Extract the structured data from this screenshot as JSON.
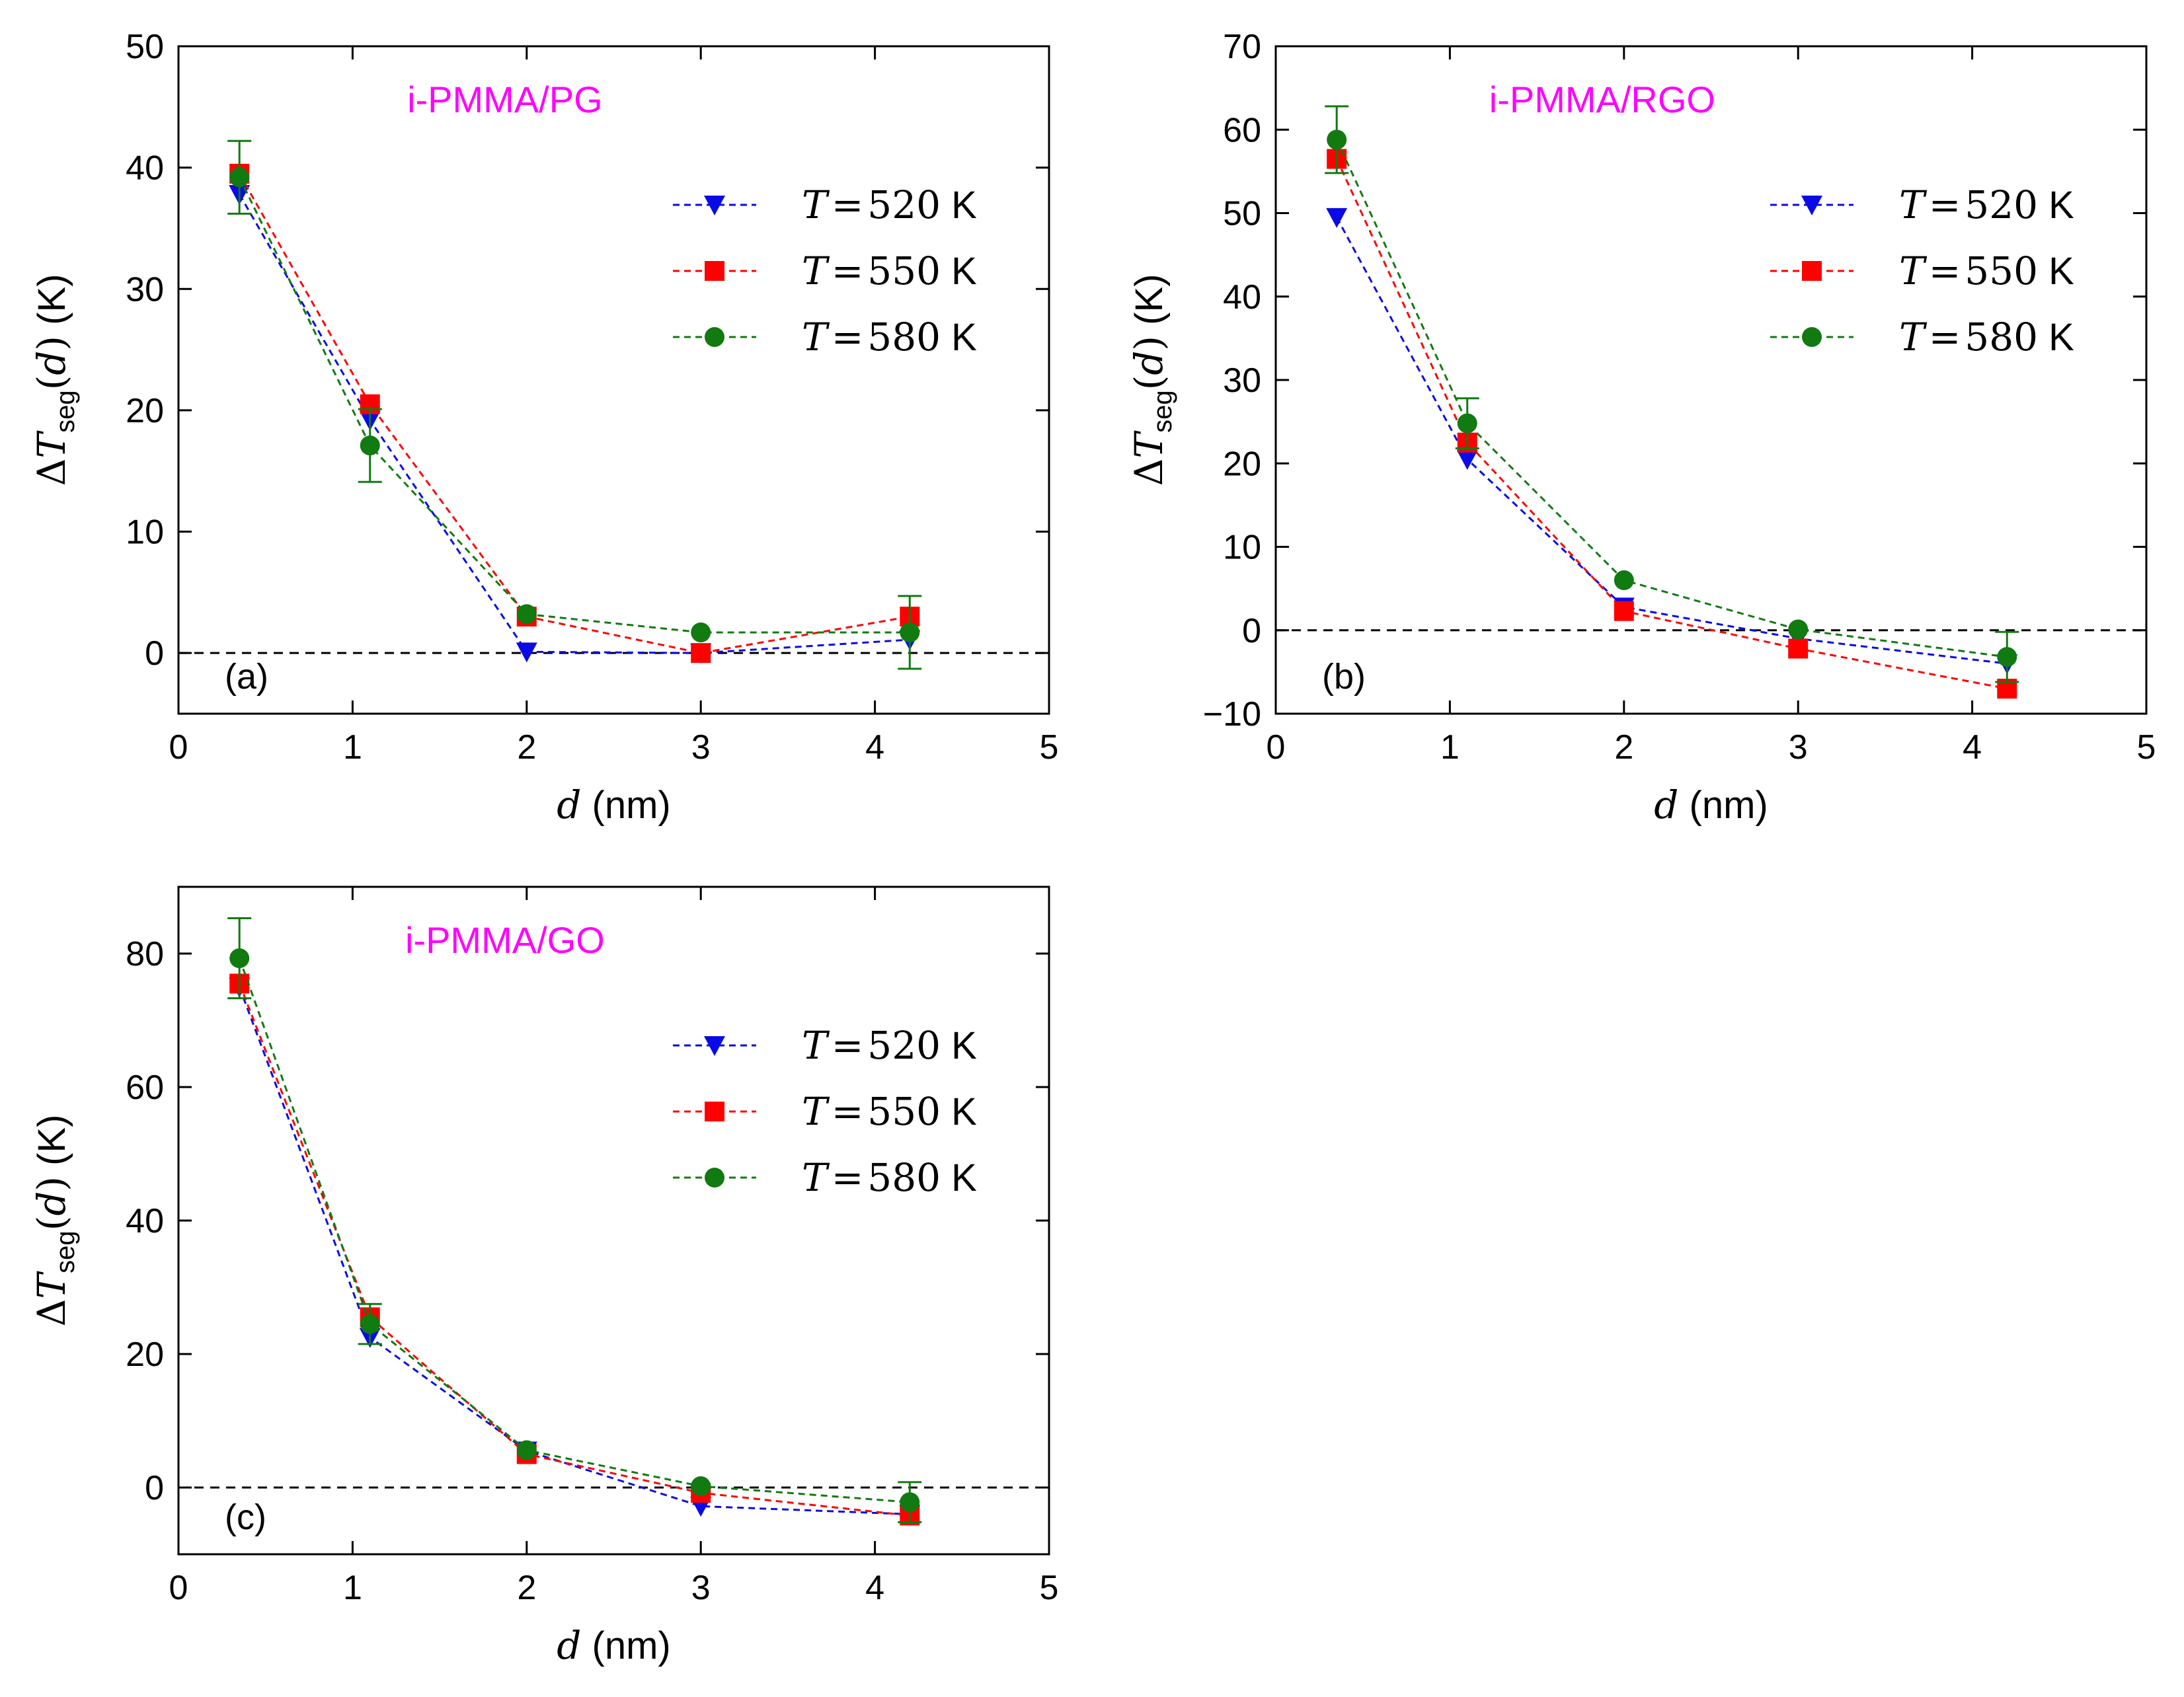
{
  "colors": {
    "T520": "#0a0ae6",
    "T550": "#ff0000",
    "T580": "#117a11",
    "title": "#ff00ff",
    "zero_line": "#000000"
  },
  "legend": {
    "var": "T",
    "eq": "=",
    "unit": "K"
  },
  "axes_text": {
    "x_var": "d",
    "x_unit": "(nm)",
    "y_delta": "Δ",
    "y_var": "T",
    "y_sub": "seg",
    "y_paren_open": "(",
    "y_arg": "d",
    "y_paren_close": ")",
    "y_unit": "(K)"
  },
  "chart_data": [
    {
      "type": "line",
      "panel_tag": "(a)",
      "title": "i-PMMA/PG",
      "xlim": [
        0,
        5
      ],
      "ylim": [
        -5,
        50
      ],
      "x_ticks": [
        0,
        1,
        2,
        3,
        4,
        5
      ],
      "y_ticks": [
        0,
        10,
        20,
        30,
        40,
        50
      ],
      "x": [
        0.35,
        1.1,
        2.0,
        3.0,
        4.2
      ],
      "series": [
        {
          "name": "520",
          "color_key": "T520",
          "marker": "triangle-down",
          "values": [
            37.8,
            19.2,
            0.1,
            0.0,
            1.1
          ],
          "errors": [
            0,
            0,
            0,
            0,
            0
          ]
        },
        {
          "name": "550",
          "color_key": "T550",
          "marker": "square",
          "values": [
            39.5,
            20.5,
            3.0,
            0.0,
            3.0
          ],
          "errors": [
            0,
            0,
            0,
            0,
            0
          ]
        },
        {
          "name": "580",
          "color_key": "T580",
          "marker": "circle",
          "values": [
            39.2,
            17.1,
            3.2,
            1.7,
            1.7
          ],
          "errors": [
            3.0,
            3.0,
            0,
            0,
            3.0
          ]
        }
      ]
    },
    {
      "type": "line",
      "panel_tag": "(b)",
      "title": "i-PMMA/RGO",
      "xlim": [
        0,
        5
      ],
      "ylim": [
        -10,
        70
      ],
      "x_ticks": [
        0,
        1,
        2,
        3,
        4,
        5
      ],
      "y_ticks": [
        -10,
        0,
        10,
        20,
        30,
        40,
        50,
        60,
        70
      ],
      "x": [
        0.35,
        1.1,
        2.0,
        3.0,
        4.2
      ],
      "series": [
        {
          "name": "520",
          "color_key": "T520",
          "marker": "triangle-down",
          "values": [
            49.5,
            20.5,
            2.8,
            -1.0,
            -4.0
          ],
          "errors": [
            0,
            0,
            0,
            0,
            0
          ]
        },
        {
          "name": "550",
          "color_key": "T550",
          "marker": "square",
          "values": [
            56.5,
            22.5,
            2.3,
            -2.2,
            -7.0
          ],
          "errors": [
            0,
            0,
            0,
            0,
            0
          ]
        },
        {
          "name": "580",
          "color_key": "T580",
          "marker": "circle",
          "values": [
            58.8,
            24.8,
            6.0,
            0.1,
            -3.2
          ],
          "errors": [
            4.0,
            3.0,
            0,
            0,
            3.0
          ]
        }
      ]
    },
    {
      "type": "line",
      "panel_tag": "(c)",
      "title": "i-PMMA/GO",
      "xlim": [
        0,
        5
      ],
      "ylim": [
        -10,
        90
      ],
      "x_ticks": [
        0,
        1,
        2,
        3,
        4,
        5
      ],
      "y_ticks": [
        0,
        20,
        40,
        60,
        80
      ],
      "x": [
        0.35,
        1.1,
        2.0,
        3.0,
        4.2
      ],
      "series": [
        {
          "name": "520",
          "color_key": "T520",
          "marker": "triangle-down",
          "values": [
            75.0,
            22.5,
            5.5,
            -2.8,
            -4.0
          ],
          "errors": [
            0,
            0,
            0,
            0,
            0
          ]
        },
        {
          "name": "550",
          "color_key": "T550",
          "marker": "square",
          "values": [
            75.5,
            25.5,
            5.0,
            -0.8,
            -4.2
          ],
          "errors": [
            0,
            0,
            0,
            0,
            0
          ]
        },
        {
          "name": "580",
          "color_key": "T580",
          "marker": "circle",
          "values": [
            79.3,
            24.5,
            5.6,
            0.2,
            -2.2
          ],
          "errors": [
            6.0,
            3.0,
            0,
            0,
            3.0
          ]
        }
      ]
    }
  ]
}
